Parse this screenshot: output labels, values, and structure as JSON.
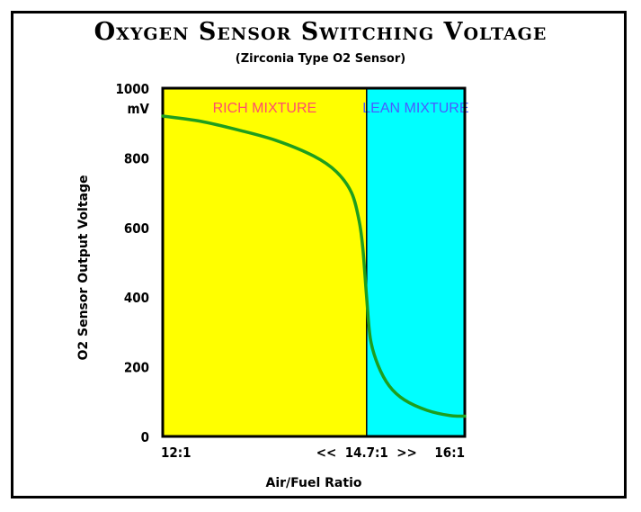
{
  "chart_data": {
    "type": "line",
    "title": "Oxygen Sensor Switching Voltage",
    "subtitle": "(Zirconia Type O2 Sensor)",
    "xlabel": "Air/Fuel Ratio",
    "ylabel": "O2 Sensor Output Voltage",
    "yunit": "mV",
    "xlim": [
      12,
      16
    ],
    "ylim": [
      0,
      1000
    ],
    "xticks": [
      {
        "value": 12,
        "label": "12:1"
      },
      {
        "value": 14.7,
        "label": "<<  14.7:1  >>"
      },
      {
        "value": 16,
        "label": "16:1"
      }
    ],
    "yticks": [
      0,
      200,
      400,
      600,
      800,
      1000
    ],
    "grid": false,
    "regions": [
      {
        "label": "RICH MIXTURE",
        "from": 12,
        "to": 14.7,
        "color": "#ffff00",
        "label_color": "#ff4d6d"
      },
      {
        "label": "LEAN MIXTURE",
        "from": 14.7,
        "to": 16,
        "color": "#00ffff",
        "label_color": "#4a5bff"
      }
    ],
    "series": [
      {
        "color": "#1e9e1e",
        "x": [
          12.0,
          12.5,
          13.0,
          13.5,
          14.0,
          14.3,
          14.5,
          14.6,
          14.65,
          14.7,
          14.75,
          14.85,
          15.0,
          15.2,
          15.5,
          15.8,
          16.0
        ],
        "y": [
          920,
          905,
          880,
          850,
          805,
          760,
          700,
          620,
          540,
          400,
          280,
          205,
          145,
          105,
          75,
          60,
          58
        ]
      }
    ]
  }
}
